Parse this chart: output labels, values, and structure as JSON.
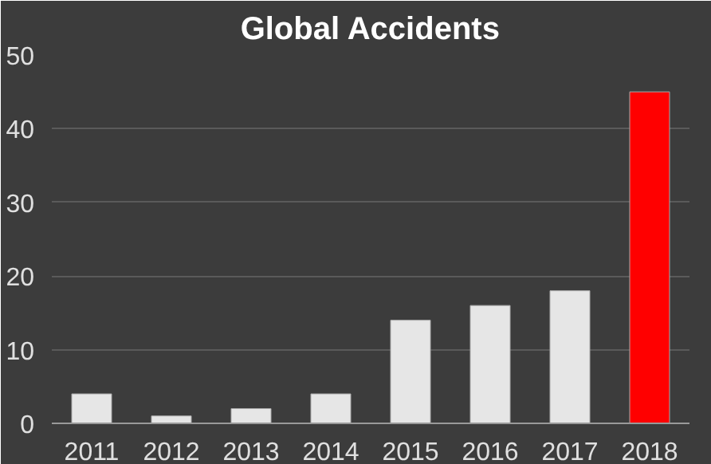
{
  "chart_data": {
    "type": "bar",
    "title": "Global Accidents",
    "categories": [
      "2011",
      "2012",
      "2013",
      "2014",
      "2015",
      "2016",
      "2017",
      "2018"
    ],
    "values": [
      4,
      1,
      2,
      4,
      14,
      16,
      18,
      45
    ],
    "colors": [
      "#e6e6e6",
      "#e6e6e6",
      "#e6e6e6",
      "#e6e6e6",
      "#e6e6e6",
      "#e6e6e6",
      "#e6e6e6",
      "#ff0000"
    ],
    "ylim": [
      0,
      50
    ],
    "yticks": [
      0,
      10,
      20,
      30,
      40,
      50
    ],
    "grid": "y"
  }
}
